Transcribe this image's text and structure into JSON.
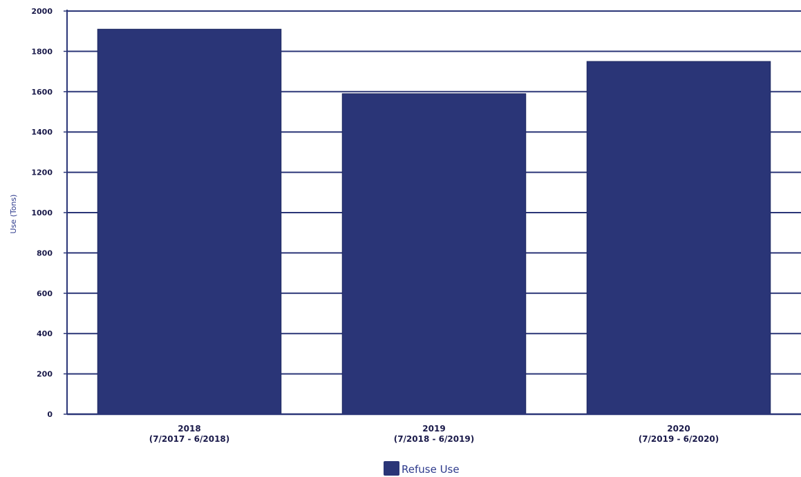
{
  "chart_data": {
    "type": "bar",
    "categories": [
      [
        "2018",
        "(7/2017 - 6/2018)"
      ],
      [
        "2019",
        "(7/2018 - 6/2019)"
      ],
      [
        "2020",
        "(7/2019 - 6/2020)"
      ]
    ],
    "series": [
      {
        "name": "Refuse Use",
        "values": [
          1910,
          1590,
          1750
        ]
      }
    ],
    "ylabel": "Use (Tons)",
    "xlabel": "",
    "title": "",
    "ylim": [
      0,
      2000
    ],
    "yticks": [
      0,
      200,
      400,
      600,
      800,
      1000,
      1200,
      1400,
      1600,
      1800,
      2000
    ],
    "grid": true,
    "legend": "bottom-center",
    "colors": {
      "bar": "#2a3577",
      "bar_edge": "#1f2960",
      "grid": "#2a3577",
      "axis": "#2a3577"
    }
  }
}
